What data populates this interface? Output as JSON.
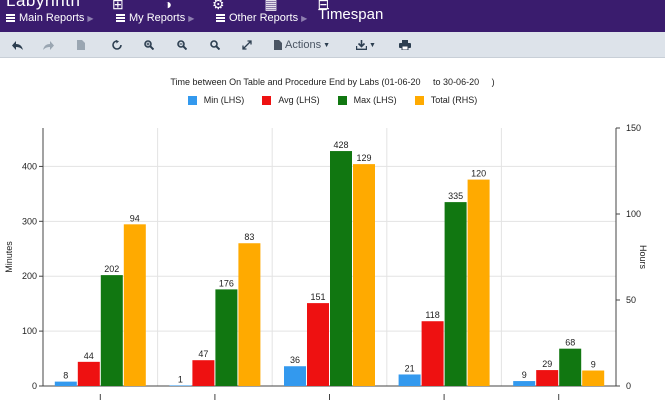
{
  "app": {
    "brand": "Labyrinth",
    "brand_icons": "⊞ ◑ ⚙ ▦ ⊟",
    "page_title": "Timespan",
    "menus": [
      {
        "label": "Main Reports"
      },
      {
        "label": "My Reports"
      },
      {
        "label": "Other Reports"
      }
    ]
  },
  "toolbar": {
    "actions_label": "Actions"
  },
  "colors": {
    "header_bg": "#3a1c6e",
    "min": "#3399ee",
    "avg": "#ee1111",
    "max": "#117711",
    "total": "#ffaa00"
  },
  "chart_data": {
    "type": "bar",
    "title": "Time between On Table and Procedure End by Labs (01-06-20     to 30-06-20     )",
    "ylabel": "Minutes",
    "y2label": "Hours",
    "ylim": [
      0,
      470
    ],
    "y2lim": [
      0,
      150
    ],
    "yticks": [
      0,
      100,
      200,
      300,
      400
    ],
    "y2ticks": [
      0,
      50,
      100,
      150
    ],
    "grid": true,
    "legend_position": "top",
    "categories": [
      "",
      "",
      "",
      "",
      ""
    ],
    "series": [
      {
        "name": "Min (LHS)",
        "axis": "left",
        "color": "#3399ee",
        "values": [
          8,
          1,
          36,
          21,
          9
        ]
      },
      {
        "name": "Avg (LHS)",
        "axis": "left",
        "color": "#ee1111",
        "values": [
          44,
          47,
          151,
          118,
          29
        ]
      },
      {
        "name": "Max (LHS)",
        "axis": "left",
        "color": "#117711",
        "values": [
          202,
          176,
          428,
          335,
          68
        ]
      },
      {
        "name": "Total (RHS)",
        "axis": "right",
        "color": "#ffaa00",
        "values": [
          94,
          83,
          129,
          120,
          9
        ]
      }
    ]
  }
}
